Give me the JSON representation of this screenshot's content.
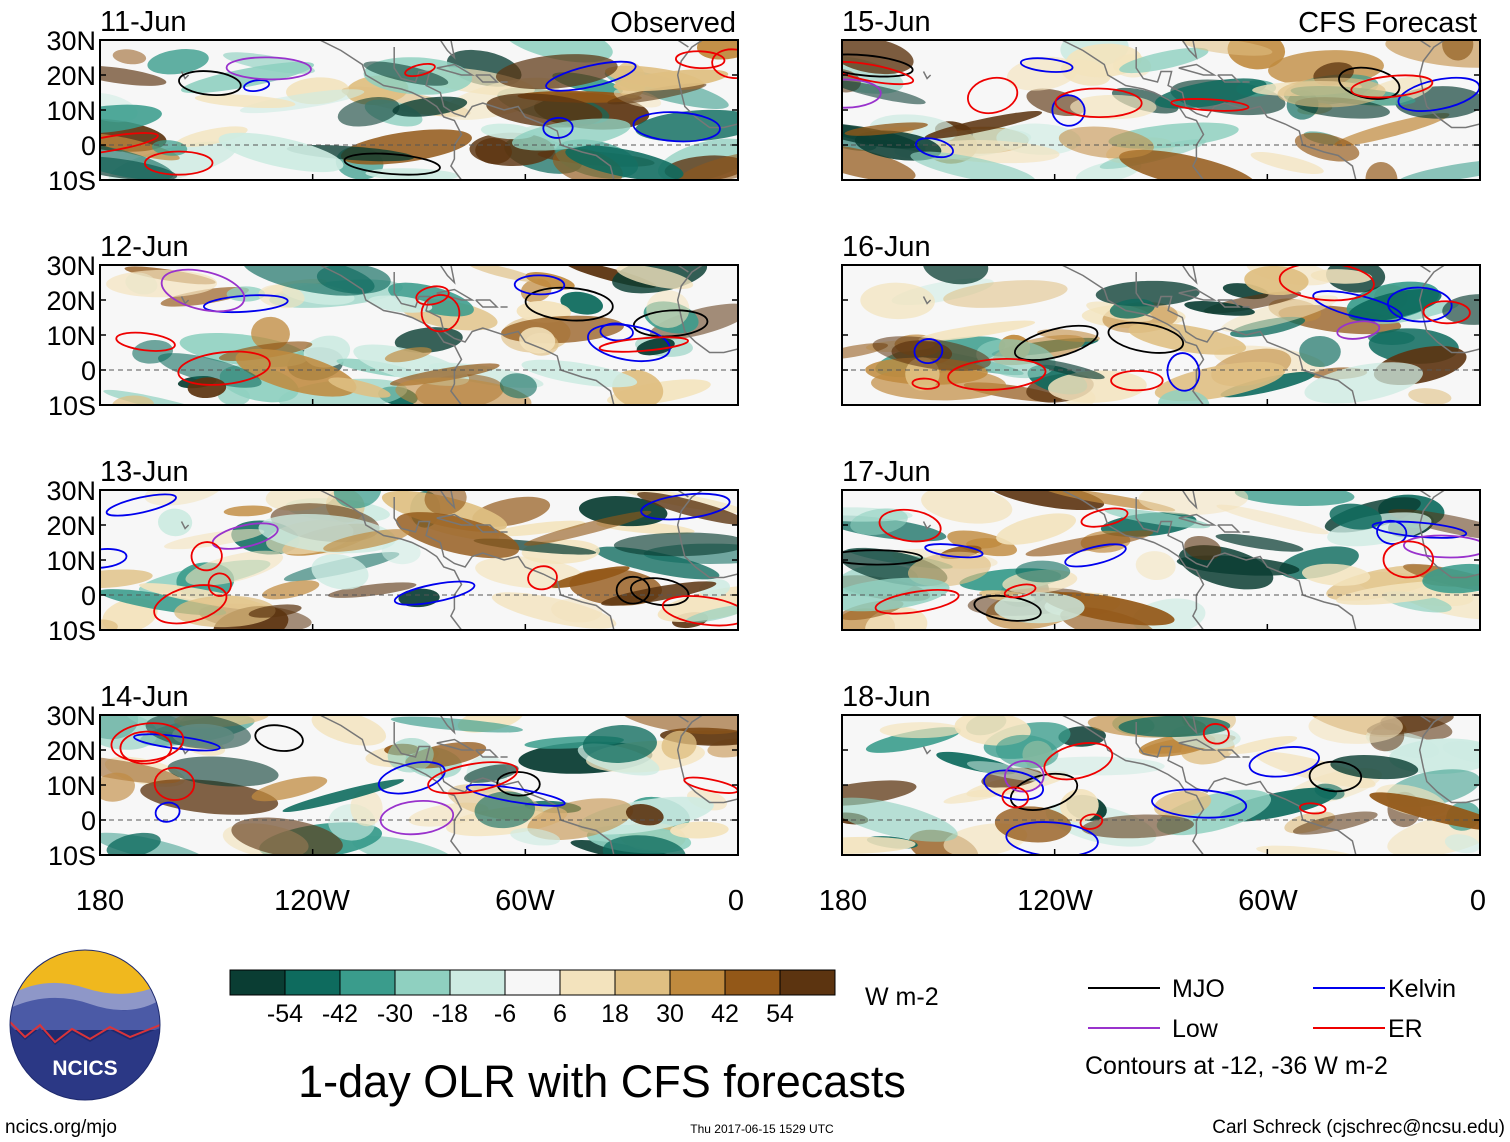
{
  "figure": {
    "title": "1-day OLR with CFS forecasts",
    "observed_label": "Observed",
    "forecast_label": "CFS Forecast",
    "website": "ncics.org/mjo",
    "timestamp": "Thu 2017-06-15 1529 UTC",
    "author": "Carl Schreck (cjschrec@ncsu.edu)",
    "logo_text": "NCICS"
  },
  "panels": {
    "observed": [
      {
        "date": "11-Jun",
        "seed": 11
      },
      {
        "date": "12-Jun",
        "seed": 12
      },
      {
        "date": "13-Jun",
        "seed": 13
      },
      {
        "date": "14-Jun",
        "seed": 14
      }
    ],
    "forecast": [
      {
        "date": "15-Jun",
        "seed": 15
      },
      {
        "date": "16-Jun",
        "seed": 16
      },
      {
        "date": "17-Jun",
        "seed": 17
      },
      {
        "date": "18-Jun",
        "seed": 18
      }
    ]
  },
  "axes": {
    "lat_ticks": [
      "30N",
      "20N",
      "10N",
      "0",
      "10S"
    ],
    "lat_values": [
      30,
      20,
      10,
      0,
      -10
    ],
    "lon_ticks": [
      "180",
      "120W",
      "60W",
      "0"
    ],
    "lon_values": [
      -180,
      -120,
      -60,
      0
    ],
    "lat_range": [
      -10,
      30
    ],
    "lon_range": [
      -180,
      0
    ]
  },
  "colorbar": {
    "units": "W m-2",
    "ticks": [
      "-54",
      "-42",
      "-30",
      "-18",
      "-6",
      "6",
      "18",
      "30",
      "42",
      "54"
    ],
    "colors": [
      "#0a3d33",
      "#0e6b5e",
      "#3a9c8c",
      "#8fd0c0",
      "#cdebe2",
      "#f7f7f7",
      "#f3e3bd",
      "#dfbf82",
      "#c08a3e",
      "#935818",
      "#5c3410"
    ]
  },
  "legend": {
    "items": [
      {
        "label": "MJO",
        "color": "#000000"
      },
      {
        "label": "Kelvin",
        "color": "#0000ee"
      },
      {
        "label": "Low",
        "color": "#9932cc"
      },
      {
        "label": "ER",
        "color": "#ee0000"
      }
    ],
    "note": "Contours at -12, -36 W m-2"
  }
}
